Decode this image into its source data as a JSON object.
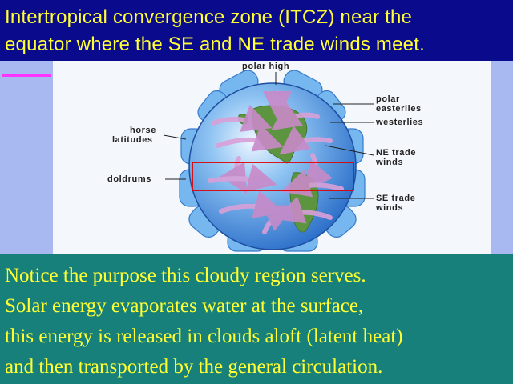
{
  "title": {
    "line1": "Intertropical  convergence  zone (ITCZ) near the",
    "line2": "equator where the SE and NE trade winds meet."
  },
  "diagram": {
    "labels": {
      "polar_high": "polar high",
      "polar_easterlies_1": "polar",
      "polar_easterlies_2": "easterlies",
      "westerlies": "westerlies",
      "ne_trade_1": "NE trade",
      "ne_trade_2": "winds",
      "se_trade_1": "SE trade",
      "se_trade_2": "winds",
      "horse_1": "horse",
      "horse_2": "latitudes",
      "doldrums": "doldrums"
    },
    "colors": {
      "ocean": "#2f7fd6",
      "cell": "#5aa8ec",
      "arrow": "#d9a0d8",
      "land": "#5c9440",
      "highlight": "#e00000"
    }
  },
  "body": {
    "line1": "Notice the purpose this cloudy region serves.",
    "line2": "Solar energy evaporates water at the surface,",
    "line3": "this energy is released in clouds aloft (latent heat)",
    "line4": "and then transported by the general circulation."
  }
}
